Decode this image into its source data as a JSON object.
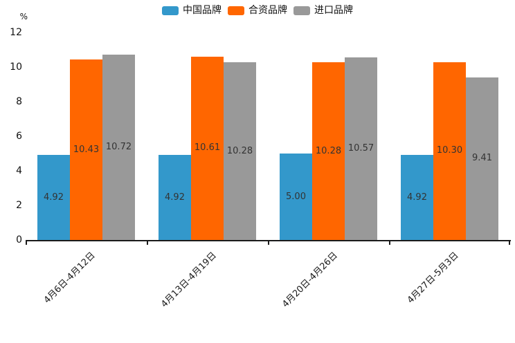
{
  "chart": {
    "unit_label": "%"
  },
  "chart_data": {
    "type": "bar",
    "title": "",
    "xlabel": "",
    "ylabel": "%",
    "categories": [
      "4月6日-4月12日",
      "4月13日-4月19日",
      "4月20日-4月26日",
      "4月27日-5月3日"
    ],
    "series": [
      {
        "name": "中国品牌",
        "color": "#3398CB",
        "values": [
          4.92,
          4.92,
          5.0,
          4.92
        ]
      },
      {
        "name": "合资品牌",
        "color": "#FF6600",
        "values": [
          10.43,
          10.61,
          10.28,
          10.3
        ]
      },
      {
        "name": "进口品牌",
        "color": "#999999",
        "values": [
          10.72,
          10.28,
          10.57,
          9.41
        ]
      }
    ],
    "yticks": [
      0,
      2,
      4,
      6,
      8,
      10,
      12
    ],
    "ylim": [
      0,
      12
    ],
    "grid": false,
    "legend_position": "top-center",
    "value_labels": "inside-center",
    "value_label_decimals": 2,
    "xtick_rotation_deg": 45
  }
}
